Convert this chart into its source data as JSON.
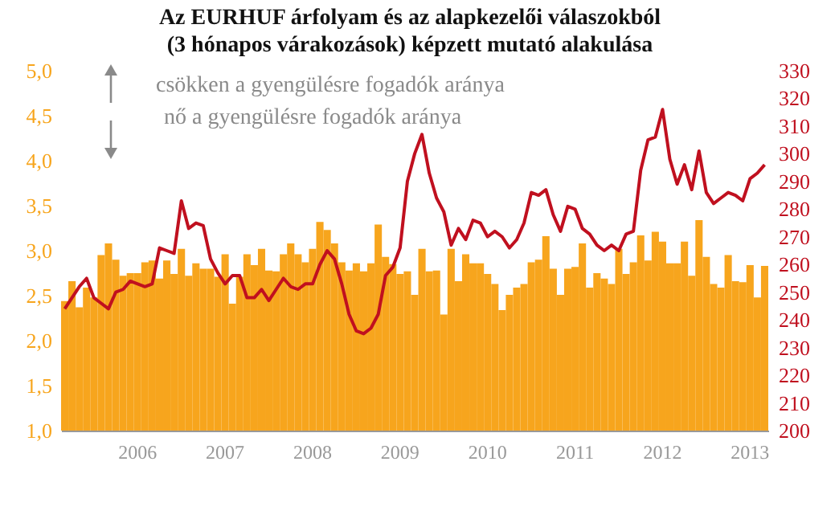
{
  "chart_data": {
    "type": "bar",
    "title": "Az EURHUF árfolyam és az alapkezelői válaszokból (3 hónapos várakozások) képzett mutató alakulása",
    "annotations": [
      "csökken a gyengülésre fogadók aránya",
      "nő a gyengülésre fogadók aránya"
    ],
    "categories": [
      null,
      null,
      null,
      null,
      null,
      null,
      null,
      null,
      null,
      null,
      "2006",
      null,
      null,
      null,
      null,
      null,
      null,
      null,
      null,
      null,
      null,
      null,
      "2007",
      null,
      null,
      null,
      null,
      null,
      null,
      null,
      null,
      null,
      null,
      null,
      "2008",
      null,
      null,
      null,
      null,
      null,
      null,
      null,
      null,
      null,
      null,
      null,
      "2009",
      null,
      null,
      null,
      null,
      null,
      null,
      null,
      null,
      null,
      null,
      null,
      "2010",
      null,
      null,
      null,
      null,
      null,
      null,
      null,
      null,
      null,
      null,
      null,
      "2011",
      null,
      null,
      null,
      null,
      null,
      null,
      null,
      null,
      null,
      null,
      null,
      "2012",
      null,
      null,
      null,
      null,
      null,
      null,
      null,
      null,
      null,
      null,
      null,
      "2013",
      null,
      null
    ],
    "series": [
      {
        "color": "#f7a51d",
        "values": [
          2.44,
          2.66,
          2.37,
          2.59,
          2.48,
          2.95,
          3.08,
          2.9,
          2.72,
          2.75,
          2.75,
          2.87,
          2.89,
          2.69,
          2.89,
          2.74,
          3.02,
          2.72,
          2.86,
          2.8,
          2.8,
          2.71,
          2.96,
          2.41,
          2.71,
          2.96,
          2.84,
          3.02,
          2.78,
          2.77,
          2.96,
          3.08,
          2.96,
          2.87,
          3.02,
          3.32,
          3.23,
          3.08,
          2.87,
          2.78,
          2.86,
          2.77,
          2.86,
          3.29,
          2.93,
          2.85,
          2.74,
          2.77,
          2.51,
          3.02,
          2.77,
          2.78,
          2.29,
          3.02,
          2.66,
          2.96,
          2.86,
          2.86,
          2.74,
          2.63,
          2.34,
          2.51,
          2.59,
          2.63,
          2.87,
          2.9,
          3.16,
          2.8,
          2.51,
          2.8,
          2.82,
          3.08,
          2.59,
          2.75,
          2.69,
          2.63,
          3.02,
          2.74,
          2.87,
          3.17,
          2.89,
          3.21,
          3.1,
          2.86,
          2.86,
          3.1,
          2.72,
          3.34,
          2.93,
          2.63,
          2.59,
          2.95,
          2.66,
          2.65,
          2.84,
          2.48,
          2.83
        ]
      },
      {
        "type": "line",
        "axis": "y2",
        "color": "#c0101f",
        "values": [
          244,
          248,
          252,
          255,
          248,
          246,
          244,
          250,
          251,
          254,
          253,
          252,
          253,
          266,
          265,
          264,
          283,
          273,
          275,
          274,
          262,
          257,
          253,
          256,
          256,
          248,
          248,
          251,
          247,
          251,
          255,
          252,
          251,
          253,
          253,
          260,
          265,
          262,
          253,
          242,
          236,
          235,
          237,
          242,
          256,
          259,
          266,
          290,
          300,
          307,
          293,
          284,
          279,
          267,
          273,
          269,
          276,
          275,
          270,
          272,
          270,
          266,
          269,
          275,
          286,
          285,
          287,
          278,
          272,
          281,
          280,
          273,
          271,
          267,
          265,
          267,
          265,
          271,
          272,
          294,
          305,
          306,
          316,
          298,
          289,
          296,
          287,
          301,
          286,
          282,
          284,
          286,
          285,
          283,
          291,
          293,
          296
        ]
      }
    ],
    "ylim": [
      1,
      5
    ],
    "yticks": [
      {
        "value": 1,
        "label": "1,0"
      },
      {
        "value": 1.5,
        "label": "1,5"
      },
      {
        "value": 2,
        "label": "2,0"
      },
      {
        "value": 2.5,
        "label": "2,5"
      },
      {
        "value": 3,
        "label": "3,0"
      },
      {
        "value": 3.5,
        "label": "3,5"
      },
      {
        "value": 4,
        "label": "4,0"
      },
      {
        "value": 4.5,
        "label": "4,5"
      },
      {
        "value": 5,
        "label": "5,0"
      }
    ],
    "y2lim": [
      200,
      330
    ],
    "y2ticks": [
      200,
      210,
      220,
      230,
      240,
      250,
      260,
      270,
      280,
      290,
      300,
      310,
      320,
      330
    ],
    "grid": false
  }
}
